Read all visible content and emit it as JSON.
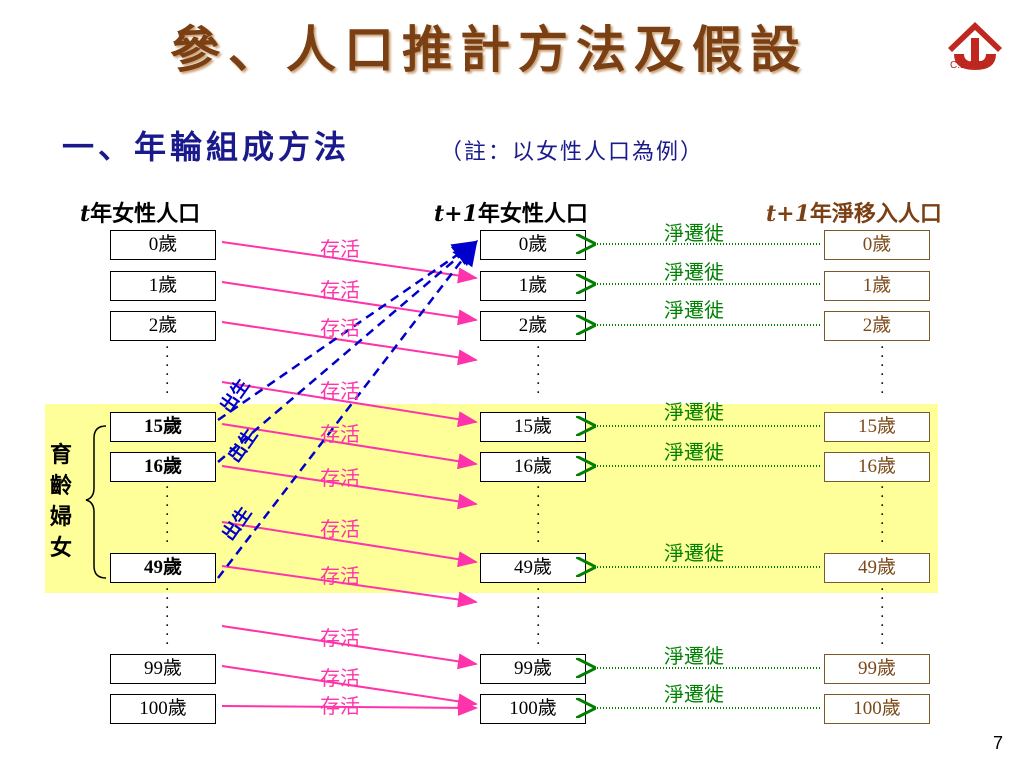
{
  "title": "參、人口推計方法及假設",
  "logo": {
    "text": "C.E.P.D.",
    "icon": "cepd-logo-icon",
    "color": "#b3261e"
  },
  "subtitle": "一、年輪組成方法",
  "subtitle_note": "（註：以女性人口為例）",
  "columns": {
    "left_header_var": "t",
    "left_header": "年女性人口",
    "mid_header_var": "t+1",
    "mid_header": "年女性人口",
    "right_header_var": "t+1",
    "right_header": "年淨移入人口"
  },
  "ages": {
    "a0": "0歲",
    "a1": "1歲",
    "a2": "2歲",
    "a15": "15歲",
    "a16": "16歲",
    "a49": "49歲",
    "a99": "99歲",
    "a100": "100歲"
  },
  "labels": {
    "survive": "存活",
    "migration": "淨遷徙",
    "birth": "出生",
    "childbearing_women": "育齡婦女"
  },
  "colors": {
    "survive": "#ff33aa",
    "birth": "#0000cc",
    "migration": "#008000",
    "highlight": "#ffff99",
    "title": "#7a3f12",
    "subtitle": "#1a1a8c"
  },
  "page_number": "7"
}
